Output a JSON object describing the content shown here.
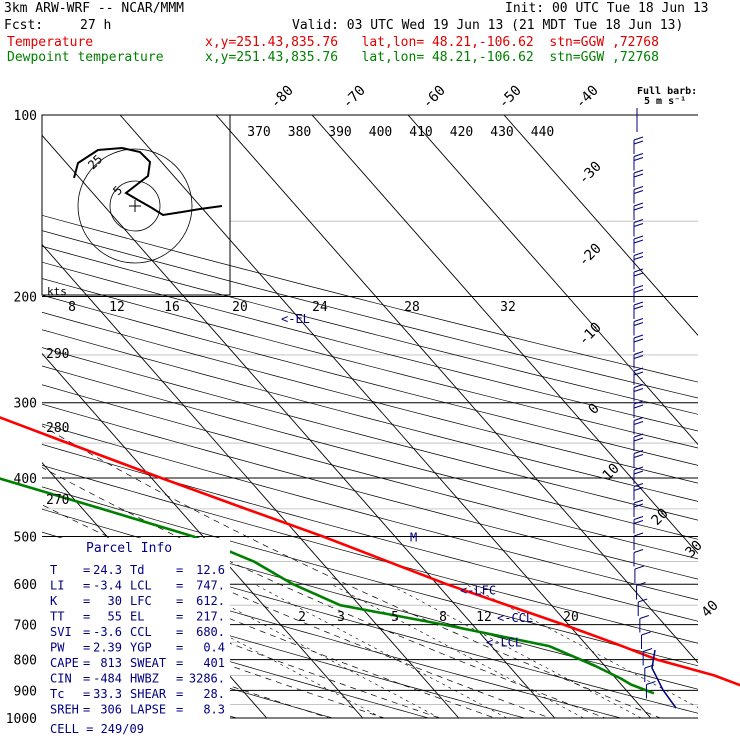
{
  "header": {
    "model": "3km ARW-WRF -- NCAR/MMM",
    "init": "Init: 00 UTC Tue 18 Jun 13",
    "fcst_label": "Fcst:",
    "fcst_value": "27 h",
    "valid": "Valid: 03 UTC Wed 19 Jun 13 (21 MDT Tue 18 Jun 13)",
    "temp_label": "Temperature",
    "temp_loc": "x,y=251.43,835.76   lat,lon= 48.21,-106.62  stn=GGW ,72768",
    "dew_label": "Dewpoint temperature",
    "dew_loc": "x,y=251.43,835.76   lat,lon= 48.21,-106.62  stn=GGW ,72768",
    "barb_title": "Full barb:",
    "barb_unit": "5 m s⁻¹"
  },
  "colors": {
    "temperature": "#ff0000",
    "dewpoint": "#008000",
    "marks": "#000080",
    "hodo": "#000000"
  },
  "chart_data": {
    "type": "line",
    "pressure_ticks": [
      "100",
      "200",
      "300",
      "400",
      "500",
      "600",
      "700",
      "800",
      "900",
      "1000"
    ],
    "isotherm_labels": [
      "-80",
      "-70",
      "-60",
      "-50",
      "-40",
      "-30",
      "-20",
      "-10",
      "0",
      "10",
      "20",
      "30",
      "40"
    ],
    "theta_labels": [
      "370",
      "380",
      "390",
      "400",
      "410",
      "420",
      "430",
      "440"
    ],
    "dry_adiabat_labels": [
      "290",
      "280",
      "270"
    ],
    "mixing_ratio_labels": [
      "2",
      "3",
      "5",
      "8",
      "12",
      "20"
    ],
    "hodograph_speed_labels": [
      "8",
      "12",
      "16",
      "20",
      "24",
      "28",
      "32"
    ],
    "hodograph_unit": "kts",
    "hodo_ring_labels": [
      "5",
      "25"
    ],
    "temperature": [
      {
        "p": 910,
        "t": 24.3
      },
      {
        "p": 895,
        "t": 23.0
      },
      {
        "p": 850,
        "t": 20.5
      },
      {
        "p": 800,
        "t": 16.0
      },
      {
        "p": 750,
        "t": 13.0
      },
      {
        "p": 700,
        "t": 9.5
      },
      {
        "p": 600,
        "t": 1.0
      },
      {
        "p": 500,
        "t": -7.5
      },
      {
        "p": 450,
        "t": -13.0
      },
      {
        "p": 400,
        "t": -19.0
      },
      {
        "p": 350,
        "t": -25.5
      },
      {
        "p": 300,
        "t": -33.0
      },
      {
        "p": 250,
        "t": -42.0
      },
      {
        "p": 210,
        "t": -51.0
      },
      {
        "p": 185,
        "t": -56.0
      },
      {
        "p": 160,
        "t": -54.0
      },
      {
        "p": 140,
        "t": -52.0
      },
      {
        "p": 125,
        "t": -55.0
      },
      {
        "p": 110,
        "t": -58.0
      },
      {
        "p": 100,
        "t": -57.0
      }
    ],
    "dewpoint": [
      {
        "p": 910,
        "t": 12.6
      },
      {
        "p": 880,
        "t": 11.0
      },
      {
        "p": 860,
        "t": 10.5
      },
      {
        "p": 820,
        "t": 9.0
      },
      {
        "p": 760,
        "t": 6.0
      },
      {
        "p": 700,
        "t": -3.0
      },
      {
        "p": 650,
        "t": -12.0
      },
      {
        "p": 600,
        "t": -15.0
      },
      {
        "p": 550,
        "t": -17.0
      },
      {
        "p": 500,
        "t": -21.0
      },
      {
        "p": 450,
        "t": -28.0
      },
      {
        "p": 400,
        "t": -36.0
      },
      {
        "p": 350,
        "t": -45.0
      },
      {
        "p": 320,
        "t": -52.0
      },
      {
        "p": 290,
        "t": -61.0
      },
      {
        "p": 270,
        "t": -66.0
      },
      {
        "p": 240,
        "t": -68.0
      },
      {
        "p": 210,
        "t": -74.0
      },
      {
        "p": 185,
        "t": -80.0
      },
      {
        "p": 160,
        "t": -82.0
      },
      {
        "p": 140,
        "t": -82.0
      },
      {
        "p": 125,
        "t": -88.0
      },
      {
        "p": 110,
        "t": -90.0
      },
      {
        "p": 100,
        "t": -90.0
      }
    ],
    "annotations": [
      {
        "text": "<-EL",
        "p": 217
      },
      {
        "text": "<-LFC",
        "p": 612
      },
      {
        "text": "<-CCL",
        "p": 680
      },
      {
        "text": "<-LCL",
        "p": 747
      },
      {
        "text": "M",
        "p": 500
      }
    ],
    "wind_barbs_count": 34
  },
  "parcel_info": {
    "title": "Parcel Info",
    "rows": [
      [
        "T",
        "24.3",
        "Td",
        "12.6"
      ],
      [
        "LI",
        "-3.4",
        "LCL",
        "747."
      ],
      [
        "K",
        "30",
        "LFC",
        "612."
      ],
      [
        "TT",
        "55",
        "EL",
        "217."
      ],
      [
        "SVI",
        "-3.6",
        "CCL",
        "680."
      ],
      [
        "PW",
        "2.39",
        "YGP",
        "0.4"
      ],
      [
        "CAPE",
        "813",
        "SWEAT",
        "401"
      ],
      [
        "CIN",
        "-484",
        "HWBZ",
        "3286."
      ],
      [
        "Tc",
        "33.3",
        "SHEAR",
        "28."
      ],
      [
        "SREH",
        "306",
        "LAPSE",
        "8.3"
      ]
    ],
    "cell": "CELL = 249/09"
  }
}
